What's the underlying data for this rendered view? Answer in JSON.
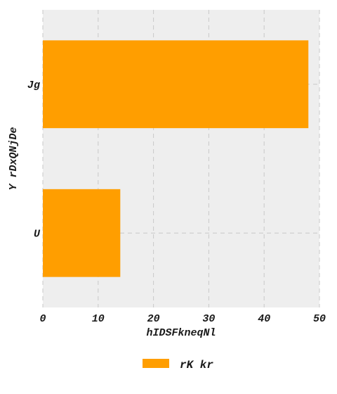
{
  "chart_data": {
    "type": "bar",
    "orientation": "horizontal",
    "categories": [
      "U",
      "Jg"
    ],
    "series": [
      {
        "name": "rK kr",
        "values": [
          14,
          48
        ]
      }
    ],
    "title": "",
    "xlabel": "hIDSFkneqNl",
    "ylabel": "Y rDxQNjDe",
    "xlim": [
      0,
      50
    ],
    "xticks": [
      "0",
      "10",
      "20",
      "30",
      "40",
      "50"
    ],
    "grid": true,
    "legend_position": "bottom-center",
    "colors": {
      "bar": "#ff9e00",
      "plot_bg": "#eeeeee",
      "grid": "#c8c8c8"
    }
  }
}
